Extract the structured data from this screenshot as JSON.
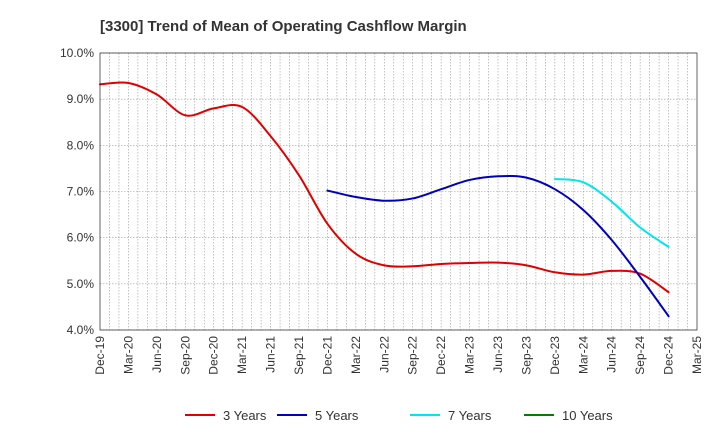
{
  "chart_data": {
    "type": "line",
    "title": "[3300]  Trend of Mean of Operating Cashflow Margin",
    "xlabel": "",
    "ylabel": "",
    "ylim": [
      4.0,
      10.0
    ],
    "y_ticks": [
      "4.0%",
      "5.0%",
      "6.0%",
      "7.0%",
      "8.0%",
      "9.0%",
      "10.0%"
    ],
    "y_tick_values": [
      4,
      5,
      6,
      7,
      8,
      9,
      10
    ],
    "x_ticks": [
      "Dec-19",
      "Mar-20",
      "Jun-20",
      "Sep-20",
      "Dec-20",
      "Mar-21",
      "Jun-21",
      "Sep-21",
      "Dec-21",
      "Mar-22",
      "Jun-22",
      "Sep-22",
      "Dec-22",
      "Mar-23",
      "Jun-23",
      "Sep-23",
      "Dec-23",
      "Mar-24",
      "Jun-24",
      "Sep-24",
      "Dec-24",
      "Mar-25"
    ],
    "grid": true,
    "legend_position": "bottom",
    "series": [
      {
        "name": "3 Years",
        "color": "#e00000",
        "x": [
          "Dec-19",
          "Mar-20",
          "Jun-20",
          "Sep-20",
          "Dec-20",
          "Mar-21",
          "Jun-21",
          "Sep-21",
          "Dec-21",
          "Mar-22",
          "Jun-22",
          "Sep-22",
          "Dec-22",
          "Mar-23",
          "Jun-23",
          "Sep-23",
          "Dec-23",
          "Mar-24",
          "Jun-24",
          "Sep-24",
          "Dec-24"
        ],
        "values": [
          9.32,
          9.35,
          9.1,
          8.65,
          8.8,
          8.83,
          8.2,
          7.35,
          6.3,
          5.65,
          5.4,
          5.38,
          5.43,
          5.45,
          5.46,
          5.4,
          5.25,
          5.2,
          5.28,
          5.22,
          4.82
        ]
      },
      {
        "name": "5 Years",
        "color": "#0000c0",
        "x": [
          "Dec-21",
          "Mar-22",
          "Jun-22",
          "Sep-22",
          "Dec-22",
          "Mar-23",
          "Jun-23",
          "Sep-23",
          "Dec-23",
          "Mar-24",
          "Jun-24",
          "Sep-24",
          "Dec-24"
        ],
        "values": [
          7.02,
          6.88,
          6.8,
          6.85,
          7.05,
          7.25,
          7.33,
          7.3,
          7.05,
          6.6,
          5.95,
          5.15,
          4.3
        ]
      },
      {
        "name": "7 Years",
        "color": "#00e5ee",
        "x": [
          "Dec-23",
          "Mar-24",
          "Jun-24",
          "Sep-24",
          "Dec-24"
        ],
        "values": [
          7.27,
          7.2,
          6.78,
          6.22,
          5.8
        ]
      },
      {
        "name": "10 Years",
        "color": "#008000",
        "x": [],
        "values": []
      }
    ]
  }
}
